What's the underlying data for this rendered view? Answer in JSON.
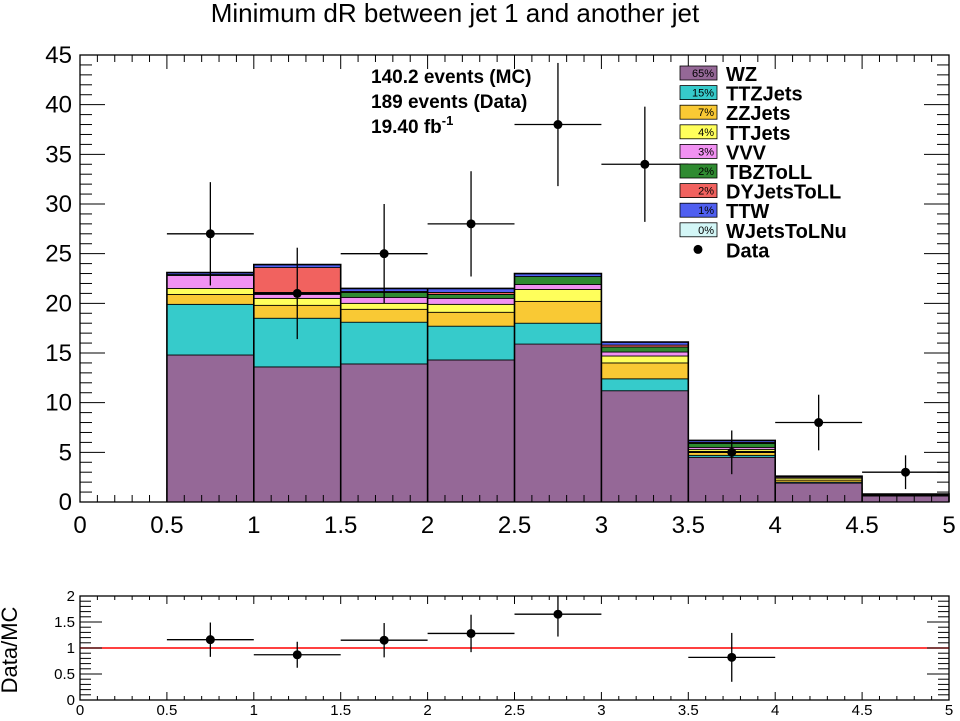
{
  "chart_data": [
    {
      "type": "bar",
      "title": "Minimum dR between jet 1 and another jet",
      "info": {
        "mc_events": "140.2 events (MC)",
        "data_events": "189 events (Data)",
        "lumi": "19.40 fb",
        "lumi_sup": "-1"
      },
      "bin_edges": [
        0,
        0.5,
        1,
        1.5,
        2,
        2.5,
        3,
        3.5,
        4,
        4.5,
        5
      ],
      "xlim": [
        0,
        5
      ],
      "ylim": [
        0,
        45
      ],
      "x_ticks": [
        "0",
        "0.5",
        "1",
        "1.5",
        "2",
        "2.5",
        "3",
        "3.5",
        "4",
        "4.5",
        "5"
      ],
      "y_ticks": [
        "0",
        "5",
        "10",
        "15",
        "20",
        "25",
        "30",
        "35",
        "40",
        "45"
      ],
      "stacked": true,
      "series": [
        {
          "name": "WZ",
          "percent": "65%",
          "color": "#956897",
          "values": [
            0,
            14.8,
            13.6,
            13.9,
            14.3,
            15.9,
            11.2,
            4.5,
            1.9,
            0.6
          ]
        },
        {
          "name": "TTZJets",
          "percent": "15%",
          "color": "#36cbcb",
          "values": [
            0,
            5.1,
            4.9,
            4.2,
            3.4,
            2.1,
            1.2,
            0.2,
            0.1,
            0.05
          ]
        },
        {
          "name": "ZZJets",
          "percent": "7%",
          "color": "#f9c934",
          "values": [
            0,
            1.0,
            1.3,
            1.3,
            1.4,
            2.2,
            1.6,
            0.4,
            0.2,
            0.05
          ]
        },
        {
          "name": "TTJets",
          "percent": "4%",
          "color": "#ffff5b",
          "values": [
            0,
            0.6,
            0.7,
            0.6,
            0.8,
            1.2,
            0.7,
            0.2,
            0.2,
            0.05
          ]
        },
        {
          "name": "VVV",
          "percent": "3%",
          "color": "#f191f2",
          "values": [
            0,
            1.3,
            0.4,
            0.6,
            0.6,
            0.5,
            0.4,
            0.2,
            0.1,
            0.03
          ]
        },
        {
          "name": "TBZToLL",
          "percent": "2%",
          "color": "#2f8b31",
          "values": [
            0,
            0.1,
            0.2,
            0.5,
            0.4,
            0.8,
            0.5,
            0.4,
            0.1,
            0.02
          ]
        },
        {
          "name": "DYJetsToLL",
          "percent": "2%",
          "color": "#f1625f",
          "values": [
            0,
            0.0,
            2.5,
            0.1,
            0.2,
            0.0,
            0.2,
            0.1,
            0.0,
            0.0
          ]
        },
        {
          "name": "TTW",
          "percent": "1%",
          "color": "#4f5ff0",
          "values": [
            0,
            0.2,
            0.3,
            0.3,
            0.4,
            0.3,
            0.3,
            0.2,
            0.0,
            0.0
          ]
        },
        {
          "name": "WJetsToLNu",
          "percent": "0%",
          "color": "#d3f6f6",
          "values": [
            0,
            0,
            0,
            0,
            0,
            0,
            0,
            0,
            0,
            0
          ]
        }
      ],
      "data_label": "Data",
      "data_points": [
        {
          "x": 0.75,
          "y": 27,
          "err_low": 5.2,
          "err_high": 5.2
        },
        {
          "x": 1.25,
          "y": 21,
          "err_low": 4.6,
          "err_high": 4.6
        },
        {
          "x": 1.75,
          "y": 25,
          "err_low": 5.0,
          "err_high": 5.0
        },
        {
          "x": 2.25,
          "y": 28,
          "err_low": 5.3,
          "err_high": 5.3
        },
        {
          "x": 2.75,
          "y": 38,
          "err_low": 6.2,
          "err_high": 6.2
        },
        {
          "x": 3.25,
          "y": 34,
          "err_low": 5.8,
          "err_high": 5.8
        },
        {
          "x": 3.75,
          "y": 5,
          "err_low": 2.2,
          "err_high": 2.2
        },
        {
          "x": 4.25,
          "y": 8,
          "err_low": 2.8,
          "err_high": 2.8
        },
        {
          "x": 4.75,
          "y": 3,
          "err_low": 1.7,
          "err_high": 1.7
        }
      ],
      "legend_position": "top-right"
    },
    {
      "type": "scatter",
      "ylabel": "Data/MC",
      "xlim": [
        0,
        5
      ],
      "ylim": [
        0,
        2
      ],
      "x_ticks": [
        "0",
        "0.5",
        "1",
        "1.5",
        "2",
        "2.5",
        "3",
        "3.5",
        "4",
        "4.5",
        "5"
      ],
      "y_ticks": [
        "0",
        "0.5",
        "1",
        "1.5",
        "2"
      ],
      "reference_line": {
        "y": 1,
        "color": "#ff0000"
      },
      "points": [
        {
          "x": 0.75,
          "y": 1.16,
          "err_low": 0.33,
          "err_high": 0.33
        },
        {
          "x": 1.25,
          "y": 0.87,
          "err_low": 0.25,
          "err_high": 0.25
        },
        {
          "x": 1.75,
          "y": 1.15,
          "err_low": 0.33,
          "err_high": 0.33
        },
        {
          "x": 2.25,
          "y": 1.28,
          "err_low": 0.36,
          "err_high": 0.36
        },
        {
          "x": 2.75,
          "y": 1.65,
          "err_low": 0.43,
          "err_high": 0.43
        },
        {
          "x": 3.75,
          "y": 0.82,
          "err_low": 0.47,
          "err_high": 0.47
        }
      ]
    }
  ]
}
